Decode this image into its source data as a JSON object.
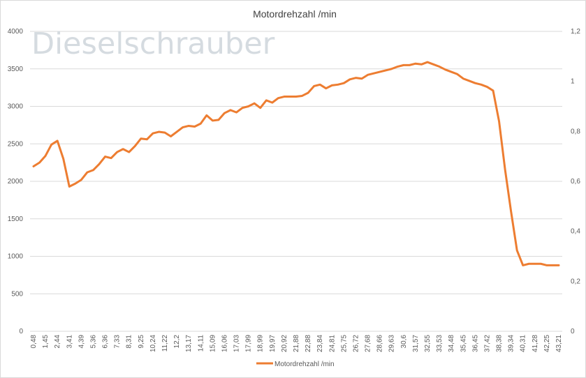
{
  "colors": {
    "series": "#ED7D31",
    "grid": "#d9d9d9",
    "watermark": "#d5dbe0"
  },
  "watermark": "Dieselschrauber",
  "chart_data": {
    "type": "line",
    "title": "Motordrehzahl /min",
    "xlabel": "",
    "ylabel": "",
    "ylim": [
      0,
      4000
    ],
    "y2lim": [
      0,
      1.2
    ],
    "y_ticks": [
      "0",
      "500",
      "1000",
      "1500",
      "2000",
      "2500",
      "3000",
      "3500",
      "4000"
    ],
    "y2_ticks": [
      "0",
      "0,2",
      "0,4",
      "0,6",
      "0,8",
      "1",
      "1,2"
    ],
    "grid": true,
    "legend": "bottom",
    "x_ticks": [
      "0,48",
      "1,45",
      "2,44",
      "3,41",
      "4,39",
      "5,36",
      "6,36",
      "7,33",
      "8,31",
      "9,25",
      "10,24",
      "11,22",
      "12,2",
      "13,17",
      "14,11",
      "15,09",
      "16,06",
      "17,03",
      "17,99",
      "18,99",
      "19,97",
      "20,92",
      "21,88",
      "22,88",
      "23,84",
      "24,81",
      "25,75",
      "26,72",
      "27,68",
      "28,66",
      "29,63",
      "30,6",
      "31,57",
      "32,55",
      "33,53",
      "34,48",
      "35,45",
      "36,45",
      "37,42",
      "38,38",
      "39,34",
      "40,31",
      "41,28",
      "42,25",
      "43,21"
    ],
    "series": [
      {
        "name": "Motordrehzahl /min",
        "values": [
          2200,
          2250,
          2340,
          2490,
          2540,
          2300,
          1930,
          1970,
          2020,
          2120,
          2150,
          2230,
          2330,
          2310,
          2390,
          2430,
          2390,
          2470,
          2570,
          2560,
          2640,
          2660,
          2650,
          2600,
          2660,
          2720,
          2740,
          2730,
          2770,
          2880,
          2810,
          2820,
          2910,
          2950,
          2920,
          2980,
          3000,
          3040,
          2980,
          3080,
          3050,
          3110,
          3130,
          3130,
          3130,
          3140,
          3180,
          3270,
          3290,
          3240,
          3280,
          3290,
          3310,
          3360,
          3380,
          3370,
          3420,
          3440,
          3460,
          3480,
          3500,
          3530,
          3550,
          3550,
          3570,
          3560,
          3590,
          3560,
          3530,
          3490,
          3460,
          3430,
          3370,
          3340,
          3310,
          3290,
          3260,
          3210,
          2800,
          2160,
          1600,
          1080,
          880,
          900,
          900,
          900,
          880,
          880,
          880
        ]
      }
    ]
  }
}
